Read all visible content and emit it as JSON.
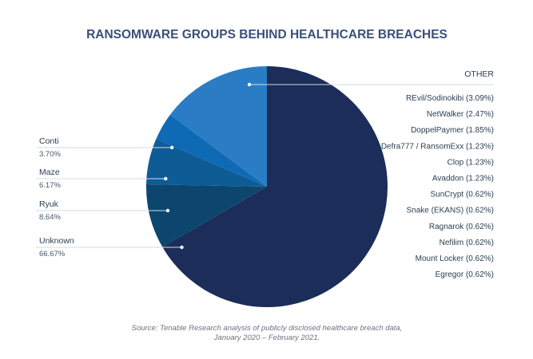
{
  "chart_data": {
    "type": "pie",
    "title": "RANSOMWARE GROUPS BEHIND HEALTHCARE BREACHES",
    "slices": [
      {
        "name": "Unknown",
        "label": "66.67%",
        "value": 66.67,
        "color": "#1b2d58"
      },
      {
        "name": "Ryuk",
        "label": "8.64%",
        "value": 8.64,
        "color": "#0c466f"
      },
      {
        "name": "Maze",
        "label": "6.17%",
        "value": 6.17,
        "color": "#0d5c96"
      },
      {
        "name": "Conti",
        "label": "3.70%",
        "value": 3.7,
        "color": "#0f6ab5"
      },
      {
        "name": "OTHER",
        "label": "",
        "value": 14.82,
        "color": "#2a7dc4"
      }
    ],
    "other": {
      "header": "OTHER",
      "items": [
        {
          "name": "REvil/Sodinokibi",
          "label": "(3.09%)",
          "value": 3.09
        },
        {
          "name": "NetWalker",
          "label": "(2.47%)",
          "value": 2.47
        },
        {
          "name": "DoppelPaymer",
          "label": "(1.85%)",
          "value": 1.85
        },
        {
          "name": "Defra777 / RansomExx",
          "label": "(1.23%)",
          "value": 1.23
        },
        {
          "name": "Clop",
          "label": "(1.23%)",
          "value": 1.23
        },
        {
          "name": "Avaddon",
          "label": "(1.23%)",
          "value": 1.23
        },
        {
          "name": "SunCrypt",
          "label": "(0.62%)",
          "value": 0.62
        },
        {
          "name": "Snake (EKANS)",
          "label": "(0.62%)",
          "value": 0.62
        },
        {
          "name": "Ragnarok",
          "label": "(0.62%)",
          "value": 0.62
        },
        {
          "name": "Nefilim",
          "label": "(0.62%)",
          "value": 0.62
        },
        {
          "name": "Mount Locker",
          "label": "(0.62%)",
          "value": 0.62
        },
        {
          "name": "Egregor",
          "label": "(0.62%)",
          "value": 0.62
        }
      ]
    },
    "source_line1": "Source: Tenable Research analysis of publicly disclosed healthcare breach data,",
    "source_line2": "January 2020 – February 2021."
  }
}
